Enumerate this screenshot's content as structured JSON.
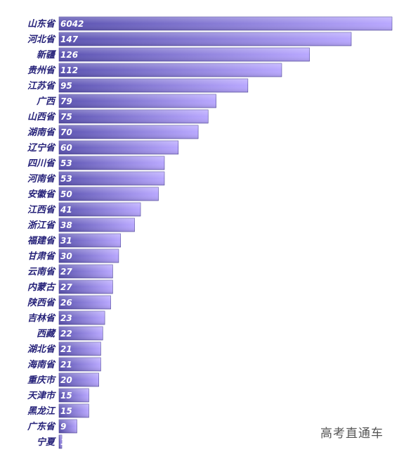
{
  "chart_data": {
    "type": "bar",
    "orientation": "horizontal",
    "categories": [
      "山东省",
      "河北省",
      "新疆",
      "贵州省",
      "江苏省",
      "广西",
      "山西省",
      "湖南省",
      "辽宁省",
      "四川省",
      "河南省",
      "安徽省",
      "江西省",
      "浙江省",
      "福建省",
      "甘肃省",
      "云南省",
      "内蒙古",
      "陕西省",
      "吉林省",
      "西藏",
      "湖北省",
      "海南省",
      "重庆市",
      "天津市",
      "黑龙江",
      "广东省",
      "宁夏"
    ],
    "values": [
      6042,
      147,
      126,
      112,
      95,
      79,
      75,
      70,
      60,
      53,
      53,
      50,
      41,
      38,
      31,
      30,
      27,
      27,
      26,
      23,
      22,
      21,
      21,
      20,
      15,
      15,
      9,
      1
    ],
    "title": "",
    "xlabel": "",
    "ylabel": "",
    "grid": false,
    "legend": "none",
    "colors": {
      "bar_start": "#5a52b0",
      "bar_end": "#b9a8ff",
      "label": "#27237a",
      "value_text": "#ffffff"
    }
  },
  "watermark": "高考直通车"
}
